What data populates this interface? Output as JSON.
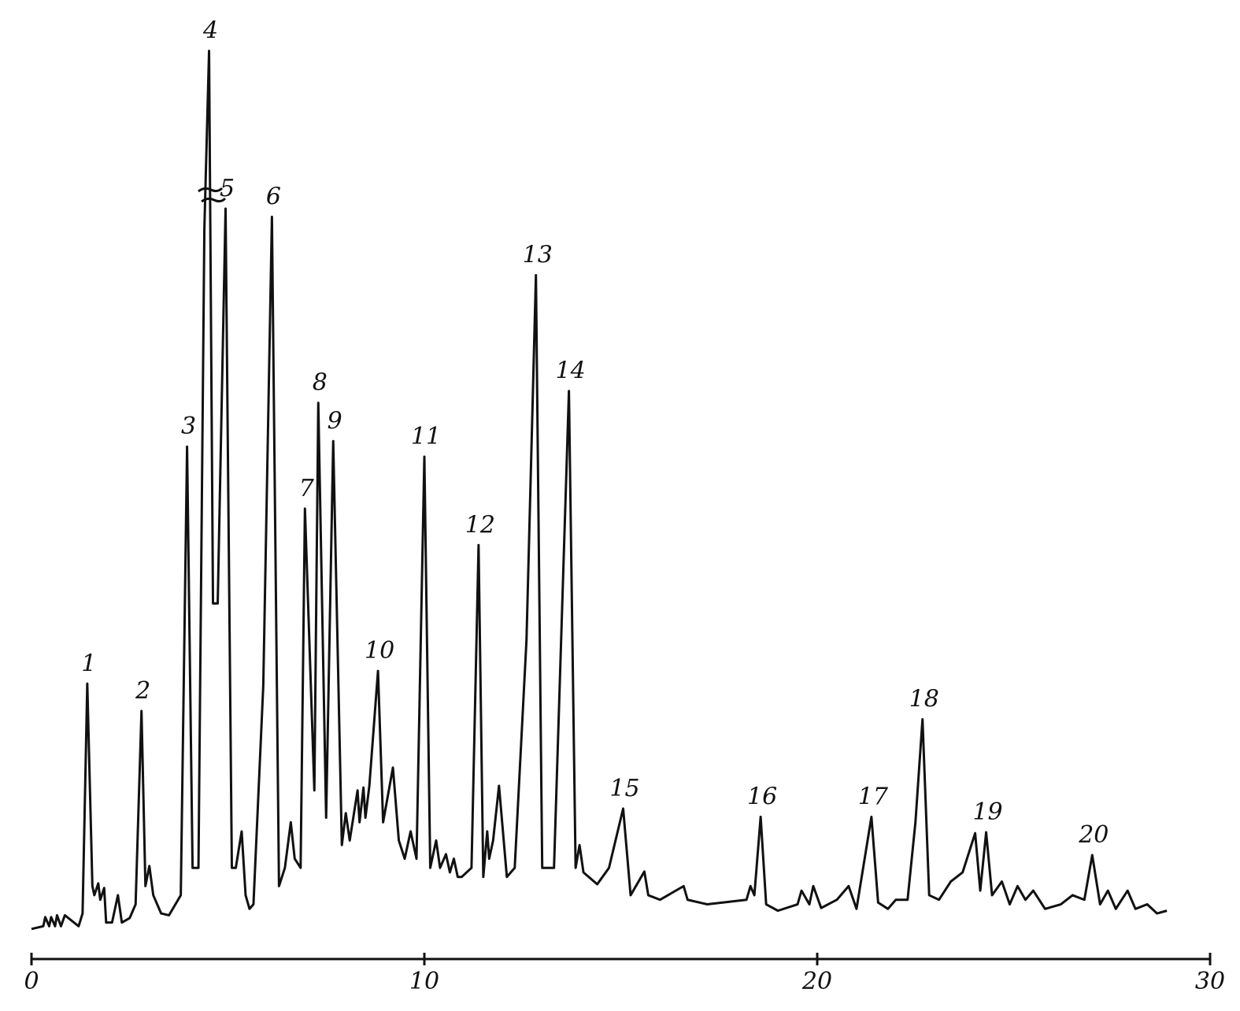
{
  "chart_data": {
    "type": "line",
    "x": [
      0,
      0.3,
      0.35,
      0.45,
      0.5,
      0.6,
      0.65,
      0.75,
      0.85,
      1.2,
      1.3,
      1.42,
      1.55,
      1.6,
      1.7,
      1.75,
      1.85,
      1.9,
      2.05,
      2.2,
      2.3,
      2.5,
      2.65,
      2.8,
      2.9,
      3.0,
      3.1,
      3.3,
      3.5,
      3.8,
      3.96,
      4.1,
      4.25,
      4.4,
      4.52,
      4.62,
      4.74,
      4.94,
      5.1,
      5.2,
      5.35,
      5.45,
      5.55,
      5.65,
      5.9,
      6.12,
      6.3,
      6.45,
      6.6,
      6.7,
      6.85,
      6.96,
      7.2,
      7.3,
      7.5,
      7.68,
      7.9,
      8.0,
      8.1,
      8.3,
      8.35,
      8.45,
      8.5,
      8.6,
      8.82,
      8.95,
      9.2,
      9.35,
      9.5,
      9.65,
      9.8,
      10.0,
      10.15,
      10.3,
      10.4,
      10.55,
      10.65,
      10.75,
      10.85,
      10.95,
      11.2,
      11.38,
      11.5,
      11.6,
      11.65,
      11.75,
      11.9,
      12.1,
      12.3,
      12.6,
      12.84,
      13.0,
      13.3,
      13.68,
      13.85,
      13.95,
      14.05,
      14.4,
      14.7,
      15.06,
      15.25,
      15.6,
      15.7,
      16.0,
      16.6,
      16.7,
      17.2,
      18.2,
      18.3,
      18.4,
      18.56,
      18.7,
      19.0,
      19.5,
      19.6,
      19.8,
      19.9,
      20.1,
      20.5,
      20.8,
      21.0,
      21.38,
      21.55,
      21.8,
      22.0,
      22.3,
      22.5,
      22.68,
      22.85,
      23.1,
      23.4,
      23.7,
      24.02,
      24.15,
      24.3,
      24.45,
      24.7,
      24.9,
      25.1,
      25.3,
      25.5,
      25.8,
      26.2,
      26.5,
      26.8,
      27.0,
      27.2,
      27.4,
      27.6,
      27.9,
      28.1,
      28.4,
      28.65,
      28.9
    ],
    "values": [
      3.3,
      3.6,
      4.6,
      3.6,
      4.6,
      3.6,
      4.8,
      3.6,
      4.8,
      3.6,
      5,
      30.2,
      8,
      7,
      8.3,
      6.5,
      7.8,
      4,
      4,
      7,
      4,
      4.5,
      6,
      27.2,
      8,
      10.2,
      7,
      5,
      4.8,
      7,
      56.2,
      10,
      10,
      80,
      99.6,
      39,
      39,
      82.3,
      10,
      10,
      14,
      7,
      5.5,
      6,
      30,
      81.4,
      8,
      10,
      15,
      11,
      10,
      49.4,
      18.5,
      61,
      15.5,
      56.8,
      12.5,
      16,
      13,
      18.5,
      15,
      18.8,
      15.5,
      19,
      31.6,
      15,
      21,
      13,
      11,
      14,
      11,
      55.1,
      10,
      13,
      10,
      11.5,
      9.5,
      11,
      9,
      9,
      10,
      45.4,
      9,
      14,
      11,
      13,
      19,
      9,
      10,
      35,
      75,
      10,
      10,
      62.3,
      10,
      12.5,
      9.5,
      8.2,
      10,
      16.5,
      7,
      9.6,
      7,
      6.5,
      8,
      6.5,
      6,
      6.5,
      8,
      7,
      15.6,
      6,
      5.3,
      6,
      7.5,
      6,
      8,
      5.6,
      6.5,
      8,
      5.5,
      15.6,
      6.2,
      5.5,
      6.5,
      6.5,
      15,
      26.3,
      7,
      6.5,
      8.5,
      9.5,
      13.8,
      7.5,
      13.9,
      7,
      8.5,
      6,
      8,
      6.5,
      7.5,
      5.5,
      6,
      7,
      6.5,
      11.4,
      6,
      7.5,
      5.5,
      7.5,
      5.5,
      6,
      5,
      5.3
    ],
    "color": "#111111",
    "peaks": [
      {
        "label": "1",
        "x": 1.42,
        "y": 30.2
      },
      {
        "label": "2",
        "x": 2.8,
        "y": 27.2
      },
      {
        "label": "3",
        "x": 3.96,
        "y": 56.2
      },
      {
        "label": "4",
        "x": 4.52,
        "y": 99.6
      },
      {
        "label": "5",
        "x": 4.94,
        "y": 82.3
      },
      {
        "label": "6",
        "x": 6.12,
        "y": 81.4
      },
      {
        "label": "7",
        "x": 6.96,
        "y": 49.4
      },
      {
        "label": "8",
        "x": 7.3,
        "y": 61
      },
      {
        "label": "9",
        "x": 7.68,
        "y": 56.8
      },
      {
        "label": "10",
        "x": 8.82,
        "y": 31.6
      },
      {
        "label": "11",
        "x": 10.0,
        "y": 55.1
      },
      {
        "label": "12",
        "x": 11.38,
        "y": 45.4
      },
      {
        "label": "13",
        "x": 12.84,
        "y": 75
      },
      {
        "label": "14",
        "x": 13.68,
        "y": 62.3
      },
      {
        "label": "15",
        "x": 15.06,
        "y": 16.5
      },
      {
        "label": "16",
        "x": 18.56,
        "y": 15.6
      },
      {
        "label": "17",
        "x": 21.38,
        "y": 15.6
      },
      {
        "label": "18",
        "x": 22.68,
        "y": 26.3
      },
      {
        "label": "19",
        "x": 24.3,
        "y": 13.9
      },
      {
        "label": "20",
        "x": 27.0,
        "y": 11.4
      }
    ],
    "xlim": [
      0,
      30
    ],
    "xticks": [
      0,
      10,
      20,
      30
    ],
    "ylim": [
      0,
      100
    ]
  }
}
